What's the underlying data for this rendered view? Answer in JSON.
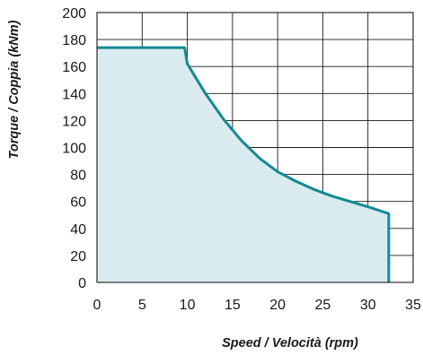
{
  "chart_data": {
    "type": "area",
    "title": "",
    "xlabel": "Speed / Velocità (rpm)",
    "ylabel": "Torque / Coppia (kNm)",
    "xlim": [
      0,
      35
    ],
    "ylim": [
      0,
      200
    ],
    "xticks": [
      0,
      5,
      10,
      15,
      20,
      25,
      30,
      35
    ],
    "yticks": [
      0,
      20,
      40,
      60,
      80,
      100,
      120,
      140,
      160,
      180,
      200
    ],
    "grid": true,
    "legend": "none",
    "colors": {
      "line": "#138a94",
      "fill": "#d9ebef"
    },
    "series": [
      {
        "x": [
          0,
          9.7,
          10,
          12,
          14,
          16,
          18,
          20,
          22,
          24,
          26,
          28,
          30,
          32.3,
          32.3
        ],
        "y": [
          174,
          174,
          162,
          140,
          121,
          105,
          92,
          82,
          75,
          69,
          64,
          60,
          56,
          51,
          0
        ]
      }
    ]
  }
}
